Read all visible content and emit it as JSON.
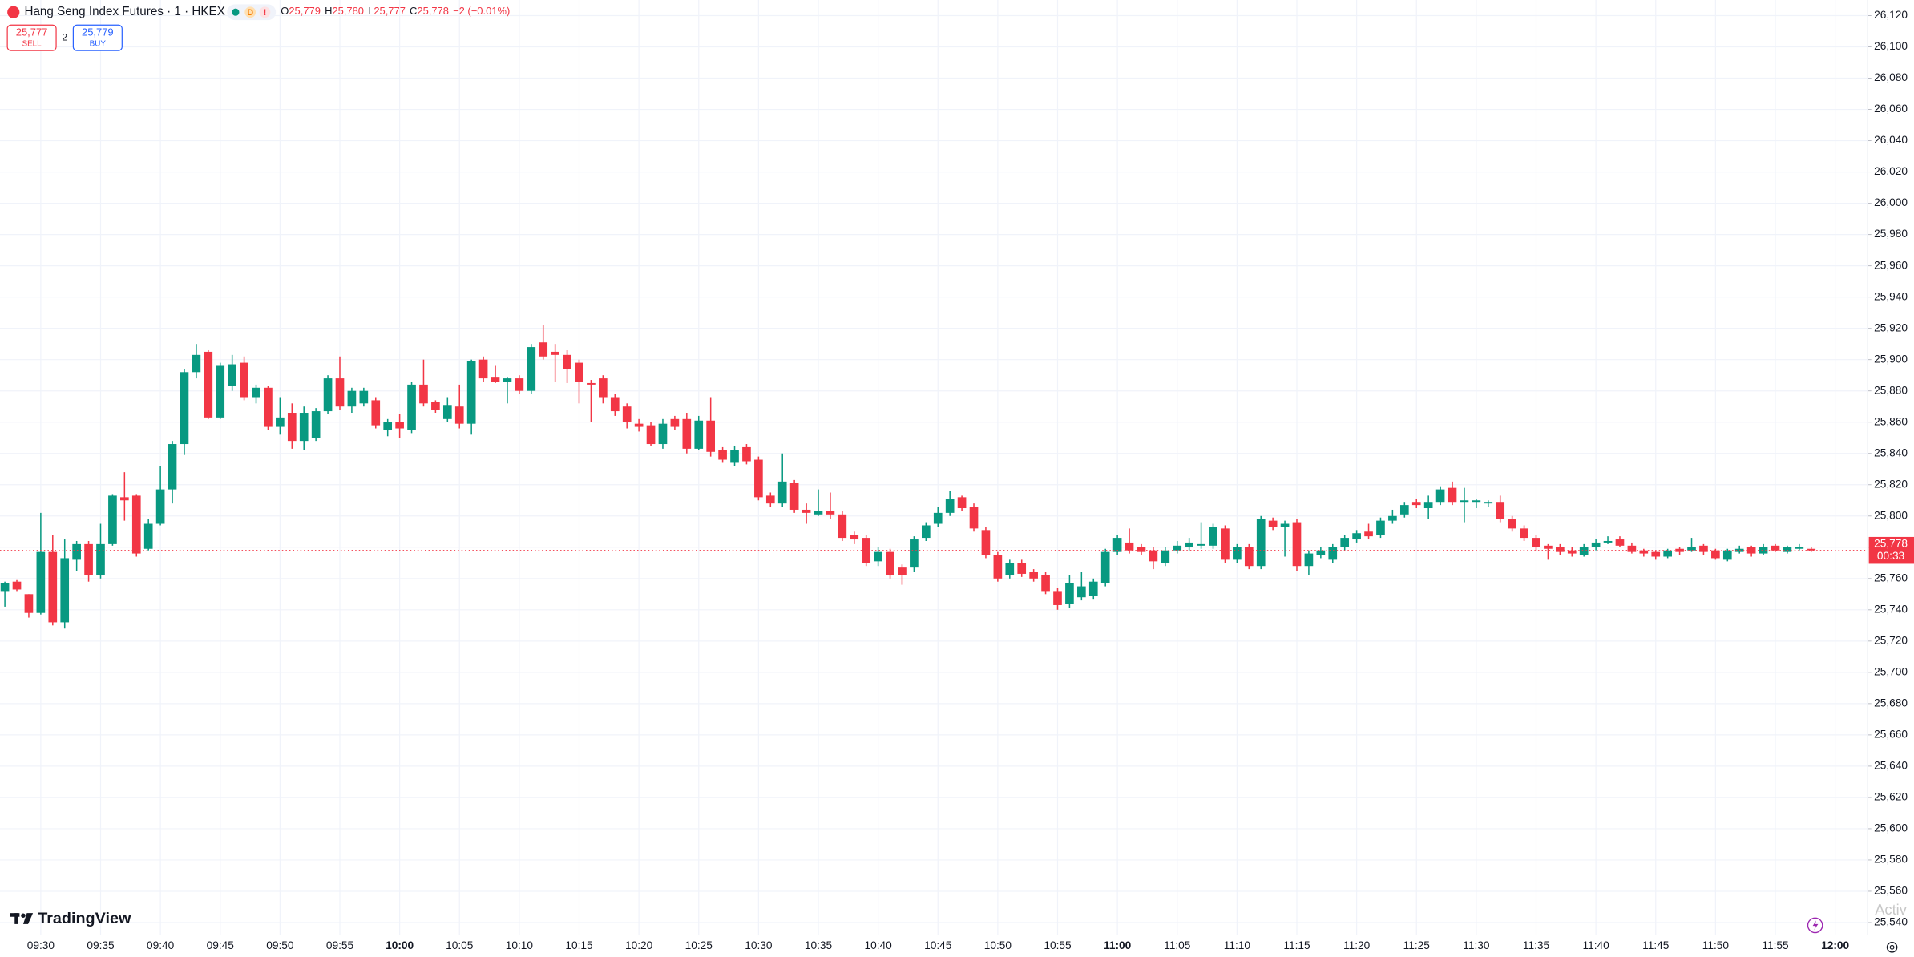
{
  "header": {
    "symbol": "Hang Seng Index Futures · 1 · HKEX",
    "badge_d": "D",
    "badge_alert": "!",
    "ohlc": [
      {
        "key": "O",
        "value": "25,779"
      },
      {
        "key": "H",
        "value": "25,780"
      },
      {
        "key": "L",
        "value": "25,777"
      },
      {
        "key": "C",
        "value": "25,778"
      }
    ],
    "change": "−2 (−0.01%)",
    "sell": {
      "price": "25,777",
      "label": "SELL"
    },
    "spread": "2",
    "buy": {
      "price": "25,779",
      "label": "BUY"
    }
  },
  "last_price": {
    "price": "25,778",
    "countdown": "00:33"
  },
  "brand": "TradingView",
  "watermark": "Activ",
  "chart_data": {
    "type": "candlestick",
    "up_color": "#089981",
    "down_color": "#f23645",
    "grid": true,
    "categories": [
      null,
      null,
      null,
      "09:30",
      null,
      null,
      null,
      null,
      "09:35",
      null,
      null,
      null,
      null,
      "09:40",
      null,
      null,
      null,
      null,
      "09:45",
      null,
      null,
      null,
      null,
      "09:50",
      null,
      null,
      null,
      null,
      "09:55",
      null,
      null,
      null,
      null,
      "10:00",
      null,
      null,
      null,
      null,
      "10:05",
      null,
      null,
      null,
      null,
      "10:10",
      null,
      null,
      null,
      null,
      "10:15",
      null,
      null,
      null,
      null,
      "10:20",
      null,
      null,
      null,
      null,
      "10:25",
      null,
      null,
      null,
      null,
      "10:30",
      null,
      null,
      null,
      null,
      "10:35",
      null,
      null,
      null,
      null,
      "10:40",
      null,
      null,
      null,
      null,
      "10:45",
      null,
      null,
      null,
      null,
      "10:50",
      null,
      null,
      null,
      null,
      "10:55",
      null,
      null,
      null,
      null,
      "11:00",
      null,
      null,
      null,
      null,
      "11:05",
      null,
      null,
      null,
      null,
      "11:10",
      null,
      null,
      null,
      null,
      "11:15",
      null,
      null,
      null,
      null,
      "11:20",
      null,
      null,
      null,
      null,
      "11:25",
      null,
      null,
      null,
      null,
      "11:30",
      null,
      null,
      null,
      null,
      "11:35",
      null,
      null,
      null,
      null,
      "11:40",
      null,
      null,
      null,
      null,
      "11:45",
      null,
      null,
      null,
      null,
      "11:50",
      null,
      null,
      null,
      null,
      "11:55",
      null,
      null,
      null,
      null,
      "12:00"
    ],
    "open": [
      25752,
      25758,
      25750,
      25738,
      25777,
      25732,
      25772,
      25782,
      25762,
      25782,
      25812,
      25813,
      25779,
      25795,
      25817,
      25846,
      25892,
      25905,
      25863,
      25883,
      25898,
      25876,
      25882,
      25857,
      25866,
      25848,
      25850,
      25867,
      25888,
      25870,
      25872,
      25874,
      25855,
      25860,
      25855,
      25884,
      25873,
      25862,
      25870,
      25859,
      25900,
      25889,
      25886,
      25888,
      25880,
      25911,
      25905,
      25903,
      25898,
      25885,
      25888,
      25876,
      25870,
      25859,
      25858,
      25846,
      25862,
      25862,
      25843,
      25861,
      25842,
      25834,
      25844,
      25836,
      25813,
      25808,
      25821,
      25804,
      25801,
      25803,
      25801,
      25788,
      25786,
      25771,
      25777,
      25767,
      25767,
      25786,
      25795,
      25802,
      25812,
      25806,
      25791,
      25775,
      25762,
      25770,
      25764,
      25762,
      25752,
      25744,
      25748,
      25749,
      25757,
      25777,
      25783,
      25780,
      25778,
      25770,
      25778,
      25780,
      25781,
      25781,
      25792,
      25772,
      25780,
      25768,
      25797,
      25793,
      25796,
      25768,
      25775,
      25772,
      25780,
      25785,
      25790,
      25788,
      25797,
      25801,
      25809,
      25805,
      25809,
      25818,
      25809,
      25809,
      25808,
      25809,
      25798,
      25792,
      25786,
      25781,
      25780,
      25778,
      25775,
      25780,
      25783,
      25785,
      25781,
      25778,
      25777,
      25774,
      25779,
      25778,
      25781,
      25778,
      25772,
      25777,
      25780,
      25776,
      25781,
      25777,
      25779,
      25779,
      null,
      null
    ],
    "high": [
      25758,
      25759,
      25750,
      25802,
      25788,
      25785,
      25784,
      25784,
      25795,
      25814,
      25828,
      25814,
      25798,
      25832,
      25848,
      25894,
      25910,
      25906,
      25898,
      25903,
      25902,
      25884,
      25883,
      25876,
      25872,
      25870,
      25869,
      25890,
      25902,
      25882,
      25882,
      25876,
      25862,
      25865,
      25886,
      25900,
      25874,
      25876,
      25884,
      25900,
      25902,
      25896,
      25889,
      25890,
      25910,
      25922,
      25910,
      25906,
      25900,
      25887,
      25890,
      25878,
      25872,
      25862,
      25860,
      25862,
      25864,
      25866,
      25864,
      25876,
      25844,
      25845,
      25846,
      25838,
      25815,
      25840,
      25823,
      25808,
      25817,
      25815,
      25803,
      25790,
      25788,
      25780,
      25779,
      25769,
      25787,
      25796,
      25806,
      25816,
      25813,
      25808,
      25793,
      25777,
      25772,
      25772,
      25766,
      25764,
      25754,
      25762,
      25764,
      25760,
      25779,
      25788,
      25792,
      25782,
      25780,
      25780,
      25784,
      25786,
      25796,
      25795,
      25794,
      25782,
      25782,
      25800,
      25799,
      25797,
      25798,
      25778,
      25780,
      25782,
      25788,
      25791,
      25795,
      25799,
      25804,
      25809,
      25811,
      25813,
      25819,
      25822,
      25818,
      25811,
      25810,
      25813,
      25800,
      25794,
      25788,
      25782,
      25782,
      25780,
      25782,
      25785,
      25787,
      25787,
      25783,
      25779,
      25778,
      25779,
      25780,
      25786,
      25782,
      25779,
      25779,
      25781,
      25781,
      25782,
      25782,
      25781,
      25782,
      25780,
      null,
      null
    ],
    "low": [
      25742,
      25752,
      25735,
      25737,
      25730,
      25728,
      25765,
      25758,
      25760,
      25781,
      25797,
      25774,
      25778,
      25794,
      25808,
      25839,
      25888,
      25862,
      25862,
      25880,
      25874,
      25872,
      25855,
      25852,
      25843,
      25842,
      25848,
      25865,
      25868,
      25866,
      25870,
      25856,
      25851,
      25850,
      25853,
      25870,
      25866,
      25860,
      25856,
      25852,
      25886,
      25885,
      25872,
      25878,
      25878,
      25900,
      25886,
      25885,
      25872,
      25860,
      25872,
      25864,
      25856,
      25854,
      25845,
      25843,
      25855,
      25840,
      25842,
      25838,
      25834,
      25832,
      25833,
      25810,
      25806,
      25806,
      25802,
      25795,
      25800,
      25798,
      25784,
      25782,
      25768,
      25768,
      25760,
      25756,
      25764,
      25784,
      25793,
      25800,
      25803,
      25790,
      25773,
      25758,
      25760,
      25761,
      25758,
      25750,
      25740,
      25741,
      25746,
      25747,
      25755,
      25775,
      25776,
      25775,
      25766,
      25768,
      25776,
      25778,
      25779,
      25779,
      25770,
      25770,
      25766,
      25766,
      25791,
      25774,
      25765,
      25762,
      25773,
      25770,
      25778,
      25783,
      25785,
      25786,
      25795,
      25799,
      25805,
      25798,
      25807,
      25807,
      25796,
      25805,
      25806,
      25796,
      25790,
      25784,
      25778,
      25772,
      25775,
      25774,
      25774,
      25778,
      25782,
      25780,
      25776,
      25774,
      25772,
      25773,
      25775,
      25777,
      25775,
      25772,
      25771,
      25776,
      25774,
      25775,
      25777,
      25776,
      25778,
      25777,
      null,
      null
    ],
    "close": [
      25757,
      25753,
      25738,
      25777,
      25732,
      25773,
      25782,
      25762,
      25782,
      25813,
      25810,
      25776,
      25795,
      25817,
      25846,
      25892,
      25903,
      25863,
      25896,
      25897,
      25876,
      25882,
      25857,
      25863,
      25848,
      25866,
      25867,
      25888,
      25870,
      25880,
      25880,
      25858,
      25860,
      25856,
      25884,
      25872,
      25868,
      25871,
      25859,
      25899,
      25888,
      25886,
      25888,
      25880,
      25908,
      25902,
      25903,
      25894,
      25886,
      25884,
      25876,
      25867,
      25860,
      25857,
      25846,
      25859,
      25857,
      25843,
      25861,
      25841,
      25836,
      25842,
      25835,
      25812,
      25808,
      25822,
      25804,
      25802,
      25803,
      25801,
      25786,
      25785,
      25770,
      25777,
      25762,
      25762,
      25785,
      25794,
      25802,
      25811,
      25805,
      25792,
      25775,
      25760,
      25770,
      25763,
      25760,
      25752,
      25743,
      25757,
      25755,
      25758,
      25777,
      25786,
      25778,
      25777,
      25771,
      25778,
      25781,
      25783,
      25782,
      25793,
      25772,
      25780,
      25768,
      25798,
      25793,
      25795,
      25768,
      25776,
      25778,
      25780,
      25786,
      25789,
      25787,
      25797,
      25800,
      25807,
      25807,
      25809,
      25817,
      25809,
      25810,
      25810,
      25809,
      25798,
      25792,
      25786,
      25780,
      25779,
      25777,
      25776,
      25780,
      25783,
      25784,
      25781,
      25777,
      25776,
      25774,
      25778,
      25777,
      25780,
      25777,
      25773,
      25778,
      25779,
      25776,
      25780,
      25778,
      25780,
      25780,
      25778,
      null,
      null
    ],
    "ylim": [
      25532,
      26130
    ],
    "yticks": [
      {
        "value": 25540,
        "label": "25,540"
      },
      {
        "value": 25560,
        "label": "25,560"
      },
      {
        "value": 25580,
        "label": "25,580"
      },
      {
        "value": 25600,
        "label": "25,600"
      },
      {
        "value": 25620,
        "label": "25,620"
      },
      {
        "value": 25640,
        "label": "25,640"
      },
      {
        "value": 25660,
        "label": "25,660"
      },
      {
        "value": 25680,
        "label": "25,680"
      },
      {
        "value": 25700,
        "label": "25,700"
      },
      {
        "value": 25720,
        "label": "25,720"
      },
      {
        "value": 25740,
        "label": "25,740"
      },
      {
        "value": 25760,
        "label": "25,760"
      },
      {
        "value": 25780,
        "label": "25,780"
      },
      {
        "value": 25800,
        "label": "25,800"
      },
      {
        "value": 25820,
        "label": "25,820"
      },
      {
        "value": 25840,
        "label": "25,840"
      },
      {
        "value": 25860,
        "label": "25,860"
      },
      {
        "value": 25880,
        "label": "25,880"
      },
      {
        "value": 25900,
        "label": "25,900"
      },
      {
        "value": 25920,
        "label": "25,920"
      },
      {
        "value": 25940,
        "label": "25,940"
      },
      {
        "value": 25960,
        "label": "25,960"
      },
      {
        "value": 25980,
        "label": "25,980"
      },
      {
        "value": 26000,
        "label": "26,000"
      },
      {
        "value": 26020,
        "label": "26,020"
      },
      {
        "value": 26040,
        "label": "26,040"
      },
      {
        "value": 26060,
        "label": "26,060"
      },
      {
        "value": 26080,
        "label": "26,080"
      },
      {
        "value": 26100,
        "label": "26,100"
      },
      {
        "value": 26120,
        "label": "26,120"
      }
    ]
  }
}
